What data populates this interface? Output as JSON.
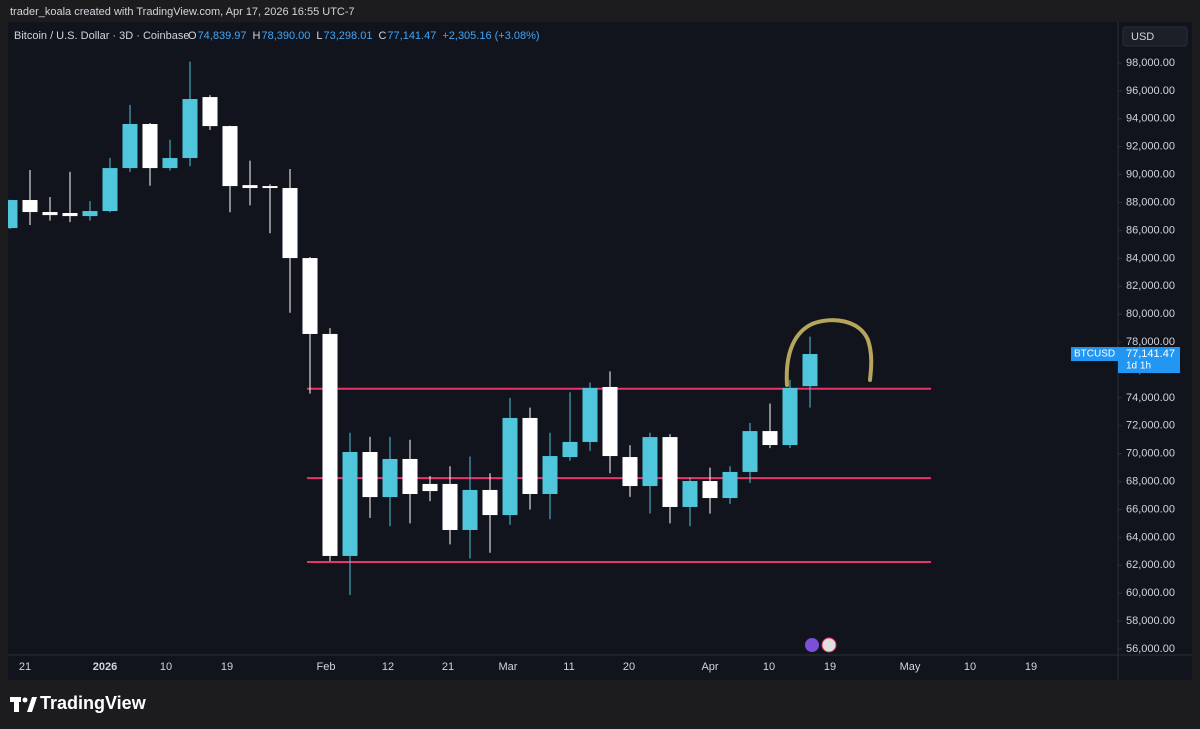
{
  "top_bar": {
    "text": "trader_koala created with TradingView.com, Apr 17, 2026 16:55 UTC-7"
  },
  "footer": {
    "brand": "TradingView"
  },
  "chart_data": {
    "type": "candlestick",
    "symbol": "Bitcoin / U.S. Dollar · 3D · Coinbase",
    "ohlc_header": [
      {
        "key": "O",
        "text": "74,839.97"
      },
      {
        "key": "H",
        "text": "78,390.00"
      },
      {
        "key": "L",
        "text": "73,298.01"
      },
      {
        "key": "C",
        "text": "77,141.47"
      }
    ],
    "change": "+2,305.16 (+3.08%)",
    "currency": "USD",
    "open": [
      86170,
      88180,
      87320,
      87250,
      87030,
      87390,
      90470,
      93630,
      90470,
      91190,
      95560,
      93480,
      89250,
      89180,
      89040,
      84020,
      78580,
      62670,
      70120,
      66890,
      69620,
      67830,
      67830,
      64530,
      67400,
      65600,
      72560,
      67110,
      69760,
      70840,
      74780,
      69760,
      67680,
      71190,
      66180,
      68040,
      66820,
      68690,
      71620,
      70620,
      74839.97
    ],
    "high": [
      88200,
      90330,
      88400,
      90200,
      88100,
      91200,
      95000,
      93700,
      92500,
      98100,
      95700,
      93500,
      91000,
      89300,
      90400,
      84100,
      79000,
      71500,
      71200,
      71200,
      71000,
      68400,
      69100,
      69800,
      68600,
      74000,
      73300,
      71500,
      74400,
      75100,
      75900,
      70600,
      71500,
      71400,
      68300,
      69000,
      69100,
      72200,
      73600,
      75300,
      78390
    ],
    "low": [
      86100,
      86390,
      86700,
      86600,
      86700,
      87300,
      90200,
      89200,
      90300,
      90600,
      93200,
      87300,
      87800,
      85800,
      80100,
      74300,
      62300,
      59870,
      65400,
      64800,
      65000,
      66600,
      63500,
      62500,
      62900,
      64900,
      66000,
      65300,
      69500,
      70200,
      68600,
      66900,
      65700,
      65000,
      64800,
      65700,
      66400,
      67900,
      70400,
      70400,
      73298.01
    ],
    "close": [
      88180,
      87320,
      87100,
      87030,
      87390,
      90470,
      93630,
      90470,
      91190,
      95420,
      93480,
      89180,
      89040,
      89040,
      84020,
      78580,
      62670,
      70120,
      66890,
      69620,
      67110,
      67320,
      64530,
      67400,
      65600,
      72560,
      67110,
      69830,
      70840,
      74710,
      69830,
      67680,
      71190,
      66180,
      68040,
      66820,
      68690,
      71620,
      70620,
      74710,
      77141.47
    ],
    "up_color": "#4fc6dc",
    "down_color": "#ffffff",
    "ylim": [
      55570,
      100940
    ],
    "yticks": [
      {
        "value": 56000,
        "label": "56,000.00"
      },
      {
        "value": 58000,
        "label": "58,000.00"
      },
      {
        "value": 60000,
        "label": "60,000.00"
      },
      {
        "value": 62000,
        "label": "62,000.00"
      },
      {
        "value": 64000,
        "label": "64,000.00"
      },
      {
        "value": 66000,
        "label": "66,000.00"
      },
      {
        "value": 68000,
        "label": "68,000.00"
      },
      {
        "value": 70000,
        "label": "70,000.00"
      },
      {
        "value": 72000,
        "label": "72,000.00"
      },
      {
        "value": 74000,
        "label": "74,000.00"
      },
      {
        "value": 76000,
        "label": "76,000.00"
      },
      {
        "value": 78000,
        "label": "78,000.00"
      },
      {
        "value": 80000,
        "label": "80,000.00"
      },
      {
        "value": 82000,
        "label": "82,000.00"
      },
      {
        "value": 84000,
        "label": "84,000.00"
      },
      {
        "value": 86000,
        "label": "86,000.00"
      },
      {
        "value": 88000,
        "label": "88,000.00"
      },
      {
        "value": 90000,
        "label": "90,000.00"
      },
      {
        "value": 92000,
        "label": "92,000.00"
      },
      {
        "value": 94000,
        "label": "94,000.00"
      },
      {
        "value": 96000,
        "label": "96,000.00"
      },
      {
        "value": 98000,
        "label": "98,000.00"
      }
    ],
    "xtick_labels": [
      "21",
      "2026",
      "10",
      "19",
      "Feb",
      "12",
      "21",
      "Mar",
      "11",
      "20",
      "Apr",
      "10",
      "19",
      "May",
      "10",
      "19"
    ],
    "levels": [
      74650,
      68250,
      62240
    ],
    "level_color": "#e8336b",
    "price_tag": {
      "symbol": "BTCUSD",
      "price": "77,141.47",
      "countdown": "1d 1h"
    }
  }
}
